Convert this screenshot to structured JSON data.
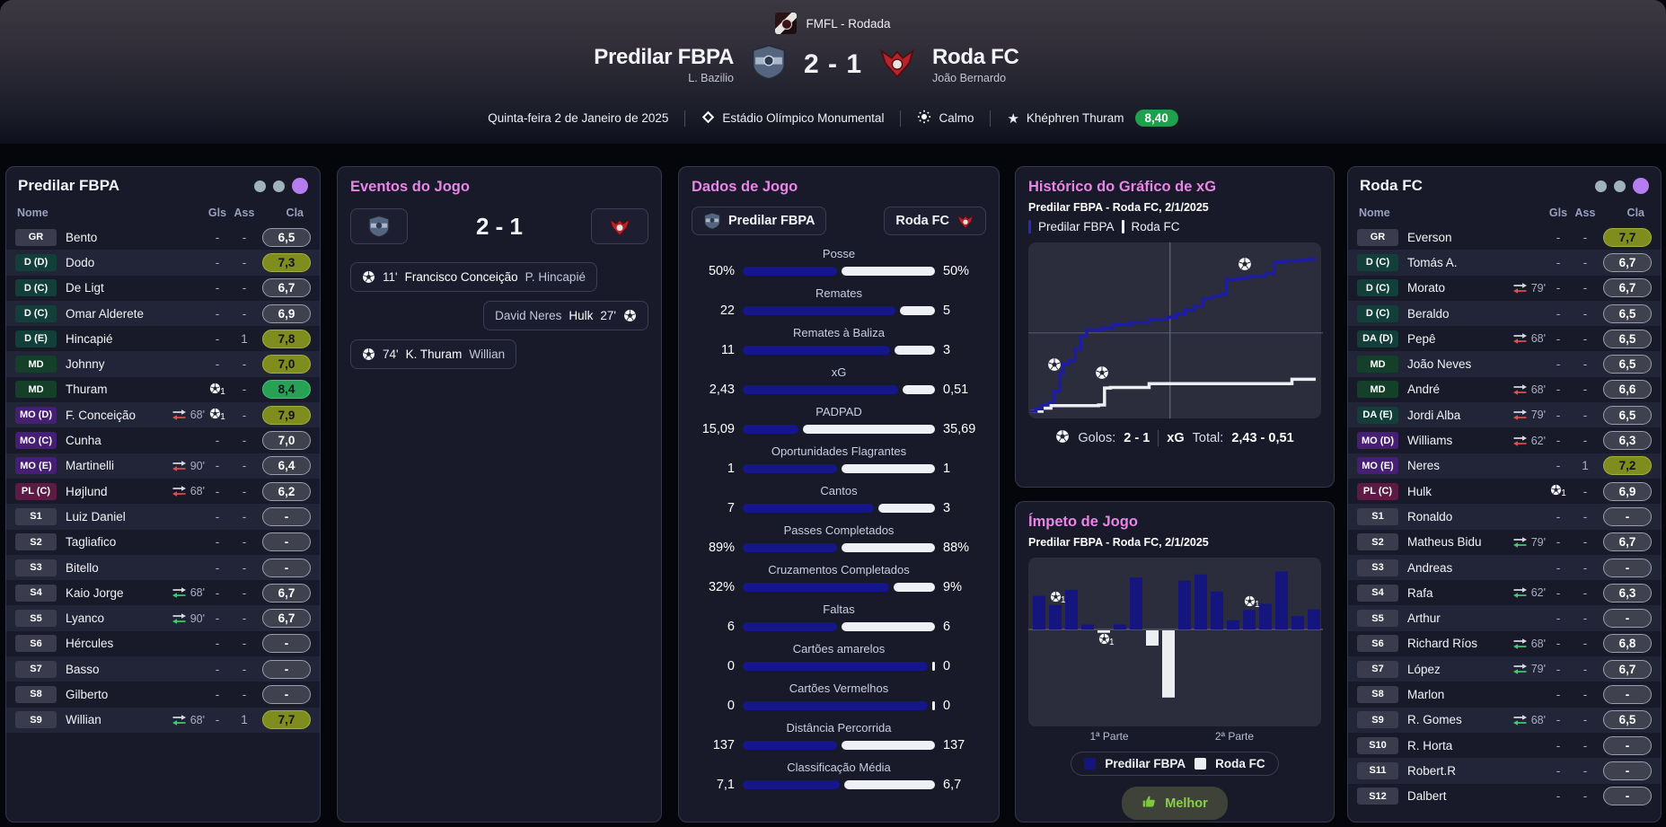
{
  "header": {
    "competition": "FMFL - Rodada",
    "score": "2 - 1",
    "home": {
      "name": "Predilar FBPA",
      "manager": "L. Bazilio"
    },
    "away": {
      "name": "Roda FC",
      "manager": "João Bernardo"
    },
    "date": "Quinta-feira 2 de Janeiro de 2025",
    "stadium": "Estádio Olímpico Monumental",
    "weather": "Calmo",
    "motm": {
      "name": "Khéphren Thuram",
      "rating": "8,40"
    }
  },
  "icons": {
    "stadium": "diamond-icon",
    "weather": "sun-icon",
    "motm": "star-icon",
    "goal": "soccer-ball-icon",
    "sub_on": "swap-arrows-green",
    "sub_off": "swap-arrows-red",
    "best": "thumbs-up-icon"
  },
  "colors": {
    "accent_pink": "#ea84e6",
    "home_bar": "#15158c",
    "away_bar": "#eef0f5",
    "rating_gray": "#3f414e",
    "rating_olive": "#7e8d1d",
    "rating_green": "#27a254",
    "motm_green": "#1fa04c",
    "dot_gray": "#9fb3bb",
    "dot_purple": "#b57df0"
  },
  "home_panel": {
    "title": "Predilar FBPA",
    "dots": [
      "#9fb3bb",
      "#9fb3bb",
      "#b57df0"
    ],
    "columns": {
      "name": "Nome",
      "gls": "Gls",
      "ass": "Ass",
      "cla": "Cla"
    },
    "rows": [
      {
        "pos": "GR",
        "type": "gk",
        "name": "Bento",
        "gls": "-",
        "ass": "-",
        "rat": "6,5",
        "rc": "gray"
      },
      {
        "pos": "D (D)",
        "type": "def",
        "name": "Dodo",
        "gls": "-",
        "ass": "-",
        "rat": "7,3",
        "rc": "olive"
      },
      {
        "pos": "D (C)",
        "type": "def",
        "name": "De Ligt",
        "gls": "-",
        "ass": "-",
        "rat": "6,7",
        "rc": "gray"
      },
      {
        "pos": "D (C)",
        "type": "def",
        "name": "Omar Alderete",
        "gls": "-",
        "ass": "-",
        "rat": "6,9",
        "rc": "gray"
      },
      {
        "pos": "D (E)",
        "type": "def",
        "name": "Hincapié",
        "gls": "-",
        "ass": "1",
        "rat": "7,8",
        "rc": "olive"
      },
      {
        "pos": "MD",
        "type": "mid",
        "name": "Johnny",
        "gls": "-",
        "ass": "-",
        "rat": "7,0",
        "rc": "olive"
      },
      {
        "pos": "MD",
        "type": "mid",
        "name": "Thuram",
        "goal": 1,
        "ass": "-",
        "rat": "8,4",
        "rc": "green"
      },
      {
        "pos": "MO (D)",
        "type": "am",
        "name": "F. Conceição",
        "sub": {
          "dir": "off",
          "min": "68'"
        },
        "goal": 1,
        "ass": "-",
        "rat": "7,9",
        "rc": "olive"
      },
      {
        "pos": "MO (C)",
        "type": "am",
        "name": "Cunha",
        "gls": "-",
        "ass": "-",
        "rat": "7,0",
        "rc": "gray"
      },
      {
        "pos": "MO (E)",
        "type": "am",
        "name": "Martinelli",
        "sub": {
          "dir": "off",
          "min": "90'"
        },
        "gls": "-",
        "ass": "-",
        "rat": "6,4",
        "rc": "gray"
      },
      {
        "pos": "PL (C)",
        "type": "st",
        "name": "Højlund",
        "sub": {
          "dir": "off",
          "min": "68'"
        },
        "gls": "-",
        "ass": "-",
        "rat": "6,2",
        "rc": "gray"
      },
      {
        "pos": "S1",
        "type": "sub",
        "name": "Luiz Daniel",
        "gls": "-",
        "ass": "-",
        "rat": "-",
        "rc": "gray"
      },
      {
        "pos": "S2",
        "type": "sub",
        "name": "Tagliafico",
        "gls": "-",
        "ass": "-",
        "rat": "-",
        "rc": "gray"
      },
      {
        "pos": "S3",
        "type": "sub",
        "name": "Bitello",
        "gls": "-",
        "ass": "-",
        "rat": "-",
        "rc": "gray"
      },
      {
        "pos": "S4",
        "type": "sub",
        "name": "Kaio Jorge",
        "sub": {
          "dir": "on",
          "min": "68'"
        },
        "gls": "-",
        "ass": "-",
        "rat": "6,7",
        "rc": "gray"
      },
      {
        "pos": "S5",
        "type": "sub",
        "name": "Lyanco",
        "sub": {
          "dir": "on",
          "min": "90'"
        },
        "gls": "-",
        "ass": "-",
        "rat": "6,7",
        "rc": "gray"
      },
      {
        "pos": "S6",
        "type": "sub",
        "name": "Hércules",
        "gls": "-",
        "ass": "-",
        "rat": "-",
        "rc": "gray"
      },
      {
        "pos": "S7",
        "type": "sub",
        "name": "Basso",
        "gls": "-",
        "ass": "-",
        "rat": "-",
        "rc": "gray"
      },
      {
        "pos": "S8",
        "type": "sub",
        "name": "Gilberto",
        "gls": "-",
        "ass": "-",
        "rat": "-",
        "rc": "gray"
      },
      {
        "pos": "S9",
        "type": "sub",
        "name": "Willian",
        "sub": {
          "dir": "on",
          "min": "68'"
        },
        "gls": "-",
        "ass": "1",
        "rat": "7,7",
        "rc": "olive"
      }
    ]
  },
  "away_panel": {
    "title": "Roda FC",
    "dots": [
      "#9fb3bb",
      "#9fb3bb",
      "#b57df0"
    ],
    "columns": {
      "name": "Nome",
      "gls": "Gls",
      "ass": "Ass",
      "cla": "Cla"
    },
    "rows": [
      {
        "pos": "GR",
        "type": "gk",
        "name": "Everson",
        "gls": "-",
        "ass": "-",
        "rat": "7,7",
        "rc": "olive"
      },
      {
        "pos": "D (C)",
        "type": "def",
        "name": "Tomás A.",
        "gls": "-",
        "ass": "-",
        "rat": "6,7",
        "rc": "gray"
      },
      {
        "pos": "D (C)",
        "type": "def",
        "name": "Morato",
        "sub": {
          "dir": "off",
          "min": "79'"
        },
        "gls": "-",
        "ass": "-",
        "rat": "6,7",
        "rc": "gray"
      },
      {
        "pos": "D (C)",
        "type": "def",
        "name": "Beraldo",
        "gls": "-",
        "ass": "-",
        "rat": "6,5",
        "rc": "gray"
      },
      {
        "pos": "DA (D)",
        "type": "def",
        "name": "Pepê",
        "sub": {
          "dir": "off",
          "min": "68'"
        },
        "gls": "-",
        "ass": "-",
        "rat": "6,5",
        "rc": "gray"
      },
      {
        "pos": "MD",
        "type": "mid",
        "name": "João Neves",
        "gls": "-",
        "ass": "-",
        "rat": "6,5",
        "rc": "gray"
      },
      {
        "pos": "MD",
        "type": "mid",
        "name": "André",
        "sub": {
          "dir": "off",
          "min": "68'"
        },
        "gls": "-",
        "ass": "-",
        "rat": "6,6",
        "rc": "gray"
      },
      {
        "pos": "DA (E)",
        "type": "def",
        "name": "Jordi Alba",
        "sub": {
          "dir": "off",
          "min": "79'"
        },
        "gls": "-",
        "ass": "-",
        "rat": "6,5",
        "rc": "gray"
      },
      {
        "pos": "MO (D)",
        "type": "am",
        "name": "Williams",
        "sub": {
          "dir": "off",
          "min": "62'"
        },
        "gls": "-",
        "ass": "-",
        "rat": "6,3",
        "rc": "gray"
      },
      {
        "pos": "MO (E)",
        "type": "am",
        "name": "Neres",
        "gls": "-",
        "ass": "1",
        "rat": "7,2",
        "rc": "olive"
      },
      {
        "pos": "PL (C)",
        "type": "st",
        "name": "Hulk",
        "goal": 1,
        "ass": "-",
        "rat": "6,9",
        "rc": "gray"
      },
      {
        "pos": "S1",
        "type": "sub",
        "name": "Ronaldo",
        "gls": "-",
        "ass": "-",
        "rat": "-",
        "rc": "gray"
      },
      {
        "pos": "S2",
        "type": "sub",
        "name": "Matheus Bidu",
        "sub": {
          "dir": "on",
          "min": "79'"
        },
        "gls": "-",
        "ass": "-",
        "rat": "6,7",
        "rc": "gray"
      },
      {
        "pos": "S3",
        "type": "sub",
        "name": "Andreas",
        "gls": "-",
        "ass": "-",
        "rat": "-",
        "rc": "gray"
      },
      {
        "pos": "S4",
        "type": "sub",
        "name": "Rafa",
        "sub": {
          "dir": "on",
          "min": "62'"
        },
        "gls": "-",
        "ass": "-",
        "rat": "6,3",
        "rc": "gray"
      },
      {
        "pos": "S5",
        "type": "sub",
        "name": "Arthur",
        "gls": "-",
        "ass": "-",
        "rat": "-",
        "rc": "gray"
      },
      {
        "pos": "S6",
        "type": "sub",
        "name": "Richard Ríos",
        "sub": {
          "dir": "on",
          "min": "68'"
        },
        "gls": "-",
        "ass": "-",
        "rat": "6,8",
        "rc": "gray"
      },
      {
        "pos": "S7",
        "type": "sub",
        "name": "López",
        "sub": {
          "dir": "on",
          "min": "79'"
        },
        "gls": "-",
        "ass": "-",
        "rat": "6,7",
        "rc": "gray"
      },
      {
        "pos": "S8",
        "type": "sub",
        "name": "Marlon",
        "gls": "-",
        "ass": "-",
        "rat": "-",
        "rc": "gray"
      },
      {
        "pos": "S9",
        "type": "sub",
        "name": "R. Gomes",
        "sub": {
          "dir": "on",
          "min": "68'"
        },
        "gls": "-",
        "ass": "-",
        "rat": "6,5",
        "rc": "gray"
      },
      {
        "pos": "S10",
        "type": "sub",
        "name": "R. Horta",
        "gls": "-",
        "ass": "-",
        "rat": "-",
        "rc": "gray"
      },
      {
        "pos": "S11",
        "type": "sub",
        "name": "Robert.R",
        "gls": "-",
        "ass": "-",
        "rat": "-",
        "rc": "gray"
      },
      {
        "pos": "S12",
        "type": "sub",
        "name": "Dalbert",
        "gls": "-",
        "ass": "-",
        "rat": "-",
        "rc": "gray"
      }
    ]
  },
  "events_panel": {
    "title": "Eventos do Jogo",
    "score": "2 - 1",
    "events": [
      {
        "side": "home",
        "minute": "11'",
        "scorer": "Francisco Conceição",
        "assist": "P. Hincapié"
      },
      {
        "side": "away",
        "minute": "27'",
        "scorer": "Hulk",
        "assist": "David Neres"
      },
      {
        "side": "home",
        "minute": "74'",
        "scorer": "K. Thuram",
        "assist": "Willian"
      }
    ]
  },
  "stats_panel": {
    "title": "Dados de Jogo",
    "home_chip": "Predilar FBPA",
    "away_chip": "Roda FC",
    "stats": [
      {
        "label": "Posse",
        "home": "50%",
        "away": "50%",
        "hf": 0.5
      },
      {
        "label": "Remates",
        "home": "22",
        "away": "5",
        "hf": 0.815
      },
      {
        "label": "Remates à Baliza",
        "home": "11",
        "away": "3",
        "hf": 0.786
      },
      {
        "label": "xG",
        "home": "2,43",
        "away": "0,51",
        "hf": 0.826
      },
      {
        "label": "PADPAD",
        "home": "15,09",
        "away": "35,69",
        "hf": 0.297
      },
      {
        "label": "Oportunidades Flagrantes",
        "home": "1",
        "away": "1",
        "hf": 0.5
      },
      {
        "label": "Cantos",
        "home": "7",
        "away": "3",
        "hf": 0.7
      },
      {
        "label": "Passes Completados",
        "home": "89%",
        "away": "88%",
        "hf": 0.503
      },
      {
        "label": "Cruzamentos Completados",
        "home": "32%",
        "away": "9%",
        "hf": 0.78
      },
      {
        "label": "Faltas",
        "home": "6",
        "away": "6",
        "hf": 0.5
      },
      {
        "label": "Cartões amarelos",
        "home": "0",
        "away": "0",
        "hf": 0.985
      },
      {
        "label": "Cartões Vermelhos",
        "home": "0",
        "away": "0",
        "hf": 0.985
      },
      {
        "label": "Distância Percorrida",
        "home": "137",
        "away": "137",
        "hf": 0.5
      },
      {
        "label": "Classificação Média",
        "home": "7,1",
        "away": "6,7",
        "hf": 0.515
      }
    ]
  },
  "xg_panel": {
    "title": "Histórico do Gráfico de xG",
    "subtitle": "Predilar FBPA - Roda FC, 2/1/2025",
    "legend": [
      "Predilar FBPA",
      "Roda FC"
    ],
    "footer": {
      "goals_label": "Golos:",
      "goals": "2 - 1",
      "xg_label": "xG",
      "total_label": "Total:",
      "total": "2,43 - 0,51"
    },
    "chart_data": {
      "type": "line",
      "style": "step-after",
      "xlabel": "minute",
      "ylabel": "cumulative xG",
      "xlim": [
        0,
        96
      ],
      "ylim": [
        0,
        2.55
      ],
      "halftime_x": 47,
      "gridline_y": 1.25,
      "series": [
        {
          "name": "Predilar FBPA",
          "color": "#1d1da0",
          "total": 2.43,
          "points": [
            [
              0,
              0
            ],
            [
              2,
              0.04
            ],
            [
              4,
              0.1
            ],
            [
              6,
              0.14
            ],
            [
              8,
              0.32
            ],
            [
              10,
              0.6
            ],
            [
              11,
              0.75
            ],
            [
              13,
              0.8
            ],
            [
              15,
              1.0
            ],
            [
              17,
              1.2
            ],
            [
              19,
              1.3
            ],
            [
              24,
              1.33
            ],
            [
              28,
              1.38
            ],
            [
              34,
              1.42
            ],
            [
              40,
              1.46
            ],
            [
              46,
              1.5
            ],
            [
              49,
              1.55
            ],
            [
              52,
              1.62
            ],
            [
              55,
              1.68
            ],
            [
              58,
              1.8
            ],
            [
              61,
              1.83
            ],
            [
              64,
              1.87
            ],
            [
              66,
              2.1
            ],
            [
              70,
              2.12
            ],
            [
              74,
              2.15
            ],
            [
              79,
              2.2
            ],
            [
              82,
              2.38
            ],
            [
              86,
              2.4
            ],
            [
              91,
              2.41
            ],
            [
              94,
              2.43
            ],
            [
              96,
              2.43
            ]
          ]
        },
        {
          "name": "Roda FC",
          "color": "#eceef2",
          "total": 0.51,
          "points": [
            [
              0,
              0
            ],
            [
              4,
              0.05
            ],
            [
              7,
              0.09
            ],
            [
              23,
              0.1
            ],
            [
              25,
              0.37
            ],
            [
              27,
              0.38
            ],
            [
              40,
              0.44
            ],
            [
              86,
              0.44
            ],
            [
              88,
              0.51
            ],
            [
              96,
              0.51
            ]
          ]
        }
      ],
      "goal_markers": [
        {
          "x": 8,
          "y": 0.75,
          "side": "home"
        },
        {
          "x": 24,
          "y": 0.62,
          "side": "away"
        },
        {
          "x": 72,
          "y": 2.35,
          "side": "home"
        }
      ]
    }
  },
  "momentum_panel": {
    "title": "Ímpeto de Jogo",
    "subtitle": "Predilar FBPA - Roda FC, 2/1/2025",
    "xlabels": [
      "1ª Parte",
      "2ª Parte"
    ],
    "legend": [
      "Predilar FBPA",
      "Roda FC"
    ],
    "button": "Melhor",
    "chart_data": {
      "type": "bar",
      "note": "positive = Predilar FBPA (blue), negative = Roda FC (white)",
      "values": [
        55,
        40,
        65,
        8,
        -4,
        8,
        85,
        -25,
        -110,
        80,
        90,
        62,
        15,
        32,
        42,
        95,
        22,
        33
      ],
      "goal_markers": [
        {
          "index": 1,
          "side": "home"
        },
        {
          "index": 4,
          "side": "away"
        },
        {
          "index": 13,
          "side": "home"
        }
      ]
    }
  }
}
